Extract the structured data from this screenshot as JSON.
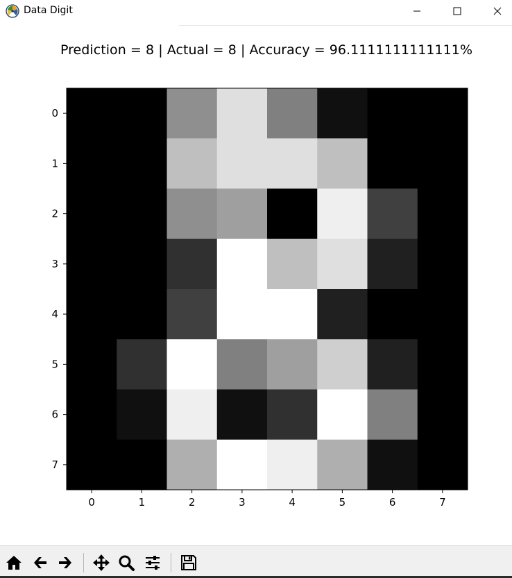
{
  "window": {
    "title": "Data Digit",
    "controls": {
      "minimize": "minimize-icon",
      "maximize": "maximize-icon",
      "close": "close-icon"
    }
  },
  "chart_data": {
    "type": "heatmap",
    "title": "Prediction = 8 | Actual = 8 | Accuracy = 96.1111111111111%",
    "colormap": "gray",
    "x_ticks": [
      "0",
      "1",
      "2",
      "3",
      "4",
      "5",
      "6",
      "7"
    ],
    "y_ticks": [
      "0",
      "1",
      "2",
      "3",
      "4",
      "5",
      "6",
      "7"
    ],
    "values": [
      [
        0,
        0,
        9,
        14,
        8,
        1,
        0,
        0
      ],
      [
        0,
        0,
        12,
        14,
        14,
        12,
        0,
        0
      ],
      [
        0,
        0,
        9,
        10,
        0,
        15,
        4,
        0
      ],
      [
        0,
        0,
        3,
        16,
        12,
        14,
        2,
        0
      ],
      [
        0,
        0,
        4,
        16,
        16,
        2,
        0,
        0
      ],
      [
        0,
        3,
        16,
        8,
        10,
        13,
        2,
        0
      ],
      [
        0,
        1,
        15,
        1,
        3,
        16,
        8,
        0
      ],
      [
        0,
        0,
        11,
        16,
        15,
        11,
        1,
        0
      ]
    ],
    "vmin": 0,
    "vmax": 16
  },
  "toolbar": {
    "buttons": [
      {
        "name": "home-icon"
      },
      {
        "name": "back-icon"
      },
      {
        "name": "forward-icon"
      },
      {
        "name": "pan-icon"
      },
      {
        "name": "zoom-icon"
      },
      {
        "name": "configure-subplots-icon"
      },
      {
        "name": "save-icon"
      }
    ]
  }
}
